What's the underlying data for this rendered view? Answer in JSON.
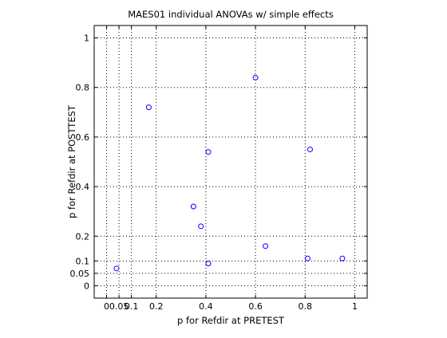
{
  "chart_data": {
    "type": "scatter",
    "title": "MAES01 individual ANOVAs w/ simple effects",
    "xlabel": "p for Refdir at PRETEST",
    "ylabel": "p for Refdir at POSTTEST",
    "xlim": [
      -0.05,
      1.05
    ],
    "ylim": [
      -0.05,
      1.05
    ],
    "x_ticks": [
      0,
      0.05,
      0.1,
      0.2,
      0.4,
      0.6,
      0.8,
      1
    ],
    "x_tick_labels": [
      "0",
      "0.05",
      "0.1",
      "0.2",
      "0.4",
      "0.6",
      "0.8",
      "1"
    ],
    "y_ticks": [
      0,
      0.05,
      0.1,
      0.2,
      0.4,
      0.6,
      0.8,
      1
    ],
    "y_tick_labels": [
      "0",
      "0.05",
      "0.1",
      "0.2",
      "0.4",
      "0.6",
      "0.8",
      "1"
    ],
    "grid": true,
    "grid_style": "dotted",
    "marker": "circle-open",
    "marker_color": "#0000ff",
    "series": [
      {
        "points": [
          {
            "x": 0.04,
            "y": 0.07
          },
          {
            "x": 0.17,
            "y": 0.72
          },
          {
            "x": 0.35,
            "y": 0.32
          },
          {
            "x": 0.38,
            "y": 0.24
          },
          {
            "x": 0.41,
            "y": 0.54
          },
          {
            "x": 0.41,
            "y": 0.09
          },
          {
            "x": 0.6,
            "y": 0.84
          },
          {
            "x": 0.64,
            "y": 0.16
          },
          {
            "x": 0.81,
            "y": 0.11
          },
          {
            "x": 0.82,
            "y": 0.55
          },
          {
            "x": 0.95,
            "y": 0.11
          }
        ]
      }
    ]
  }
}
